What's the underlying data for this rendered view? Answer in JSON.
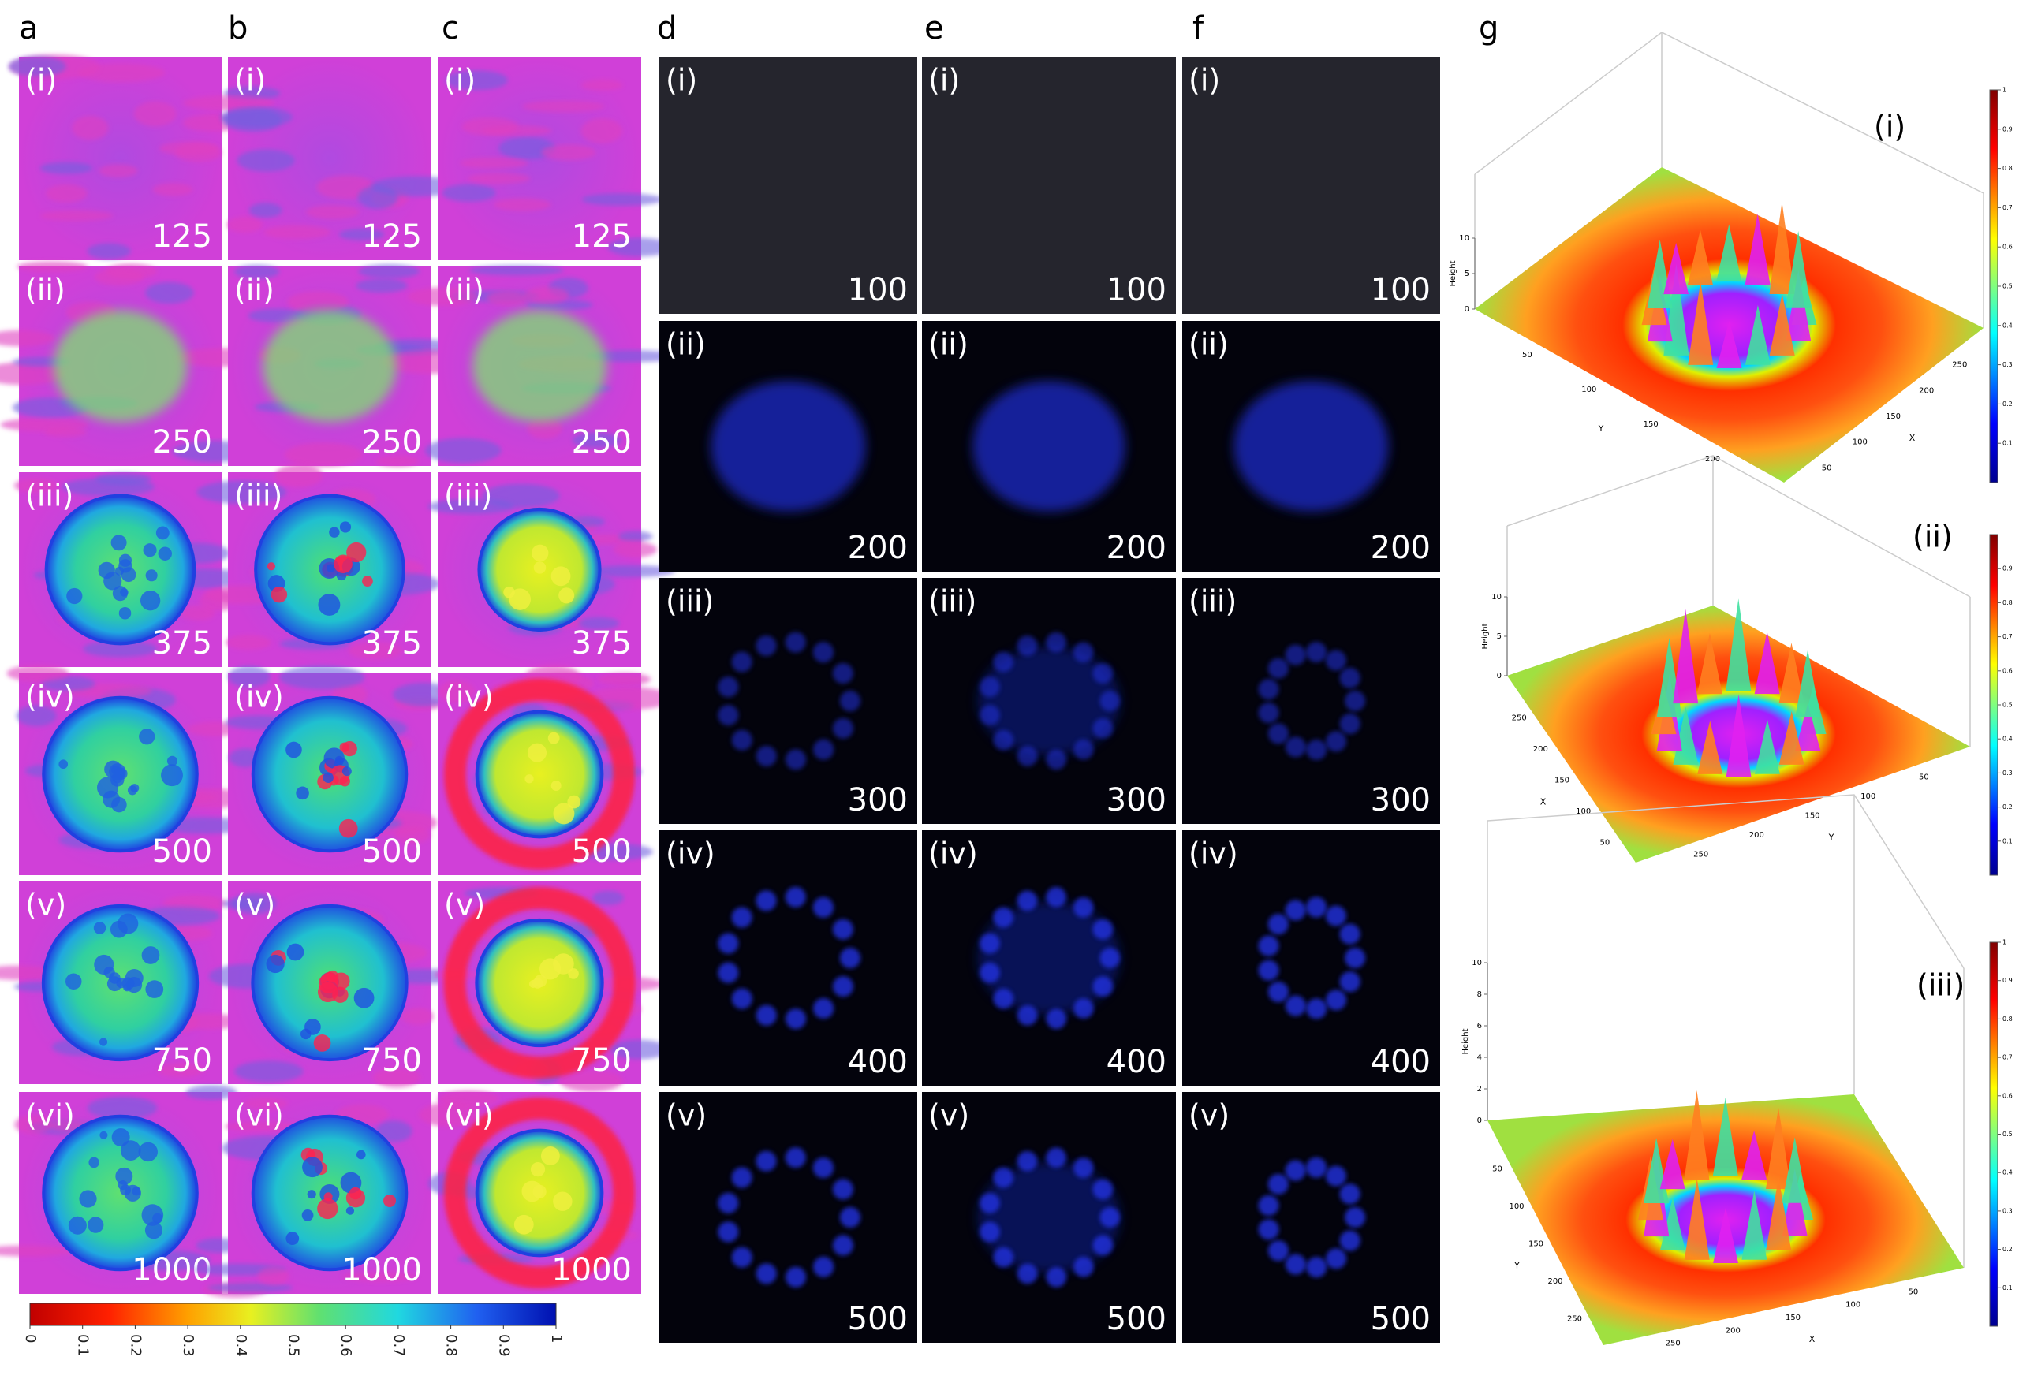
{
  "panels": [
    {
      "letter": "a",
      "images": [
        {
          "label": "(i)",
          "value": 125
        },
        {
          "label": "(ii)",
          "value": 250
        },
        {
          "label": "(iii)",
          "value": 375
        },
        {
          "label": "(iv)",
          "value": 500
        },
        {
          "label": "(v)",
          "value": 750
        },
        {
          "label": "(vi)",
          "value": 1000
        }
      ]
    },
    {
      "letter": "b",
      "images": [
        {
          "label": "(i)",
          "value": 125
        },
        {
          "label": "(ii)",
          "value": 250
        },
        {
          "label": "(iii)",
          "value": 375
        },
        {
          "label": "(iv)",
          "value": 500
        },
        {
          "label": "(v)",
          "value": 750
        },
        {
          "label": "(vi)",
          "value": 1000
        }
      ]
    },
    {
      "letter": "c",
      "images": [
        {
          "label": "(i)",
          "value": 125
        },
        {
          "label": "(ii)",
          "value": 250
        },
        {
          "label": "(iii)",
          "value": 375
        },
        {
          "label": "(iv)",
          "value": 500
        },
        {
          "label": "(v)",
          "value": 750
        },
        {
          "label": "(vi)",
          "value": 1000
        }
      ]
    },
    {
      "letter": "d",
      "images": [
        {
          "label": "(i)",
          "value": 100
        },
        {
          "label": "(ii)",
          "value": 200
        },
        {
          "label": "(iii)",
          "value": 300
        },
        {
          "label": "(iv)",
          "value": 400
        },
        {
          "label": "(v)",
          "value": 500
        }
      ]
    },
    {
      "letter": "e",
      "images": [
        {
          "label": "(i)",
          "value": 100
        },
        {
          "label": "(ii)",
          "value": 200
        },
        {
          "label": "(iii)",
          "value": 300
        },
        {
          "label": "(iv)",
          "value": 400
        },
        {
          "label": "(v)",
          "value": 500
        }
      ]
    },
    {
      "letter": "f",
      "images": [
        {
          "label": "(i)",
          "value": 100
        },
        {
          "label": "(ii)",
          "value": 200
        },
        {
          "label": "(iii)",
          "value": 300
        },
        {
          "label": "(iv)",
          "value": 400
        },
        {
          "label": "(v)",
          "value": 500
        }
      ]
    }
  ],
  "colorbar": {
    "ticks": [
      0,
      0.1,
      0.2,
      0.3,
      0.4,
      0.5,
      0.6,
      0.7,
      0.8,
      0.9,
      1
    ]
  },
  "surface_plots": {
    "letter": "g",
    "plots": [
      {
        "label": "(i)",
        "z_label": "Height",
        "x_label": "X",
        "y_label": "Y",
        "z_ticks": [
          0,
          5,
          10
        ],
        "y_ticks": [
          50,
          100,
          150,
          200
        ],
        "x_ticks": [
          50,
          100,
          150,
          200,
          250
        ],
        "colorbar_ticks": [
          0.1,
          0.2,
          0.3,
          0.4,
          0.5,
          0.6,
          0.7,
          0.8,
          0.9,
          1
        ]
      },
      {
        "label": "(ii)",
        "z_label": "Height",
        "x_label": "X",
        "y_label": "Y",
        "z_ticks": [
          0,
          5,
          10
        ],
        "x_ticks": [
          250,
          200,
          150,
          100,
          50
        ],
        "y_ticks": [
          250,
          200,
          150,
          100,
          50
        ],
        "colorbar_ticks": [
          0.1,
          0.2,
          0.3,
          0.4,
          0.5,
          0.6,
          0.7,
          0.8,
          0.9
        ]
      },
      {
        "label": "(iii)",
        "z_label": "Height",
        "x_label": "X",
        "y_label": "Y",
        "z_ticks": [
          0,
          2,
          4,
          6,
          8,
          10
        ],
        "y_ticks": [
          50,
          100,
          150,
          200,
          250
        ],
        "x_ticks": [
          250,
          200,
          150,
          100,
          50
        ],
        "colorbar_ticks": [
          0.1,
          0.2,
          0.3,
          0.4,
          0.5,
          0.6,
          0.7,
          0.8,
          0.9,
          1
        ]
      }
    ]
  }
}
